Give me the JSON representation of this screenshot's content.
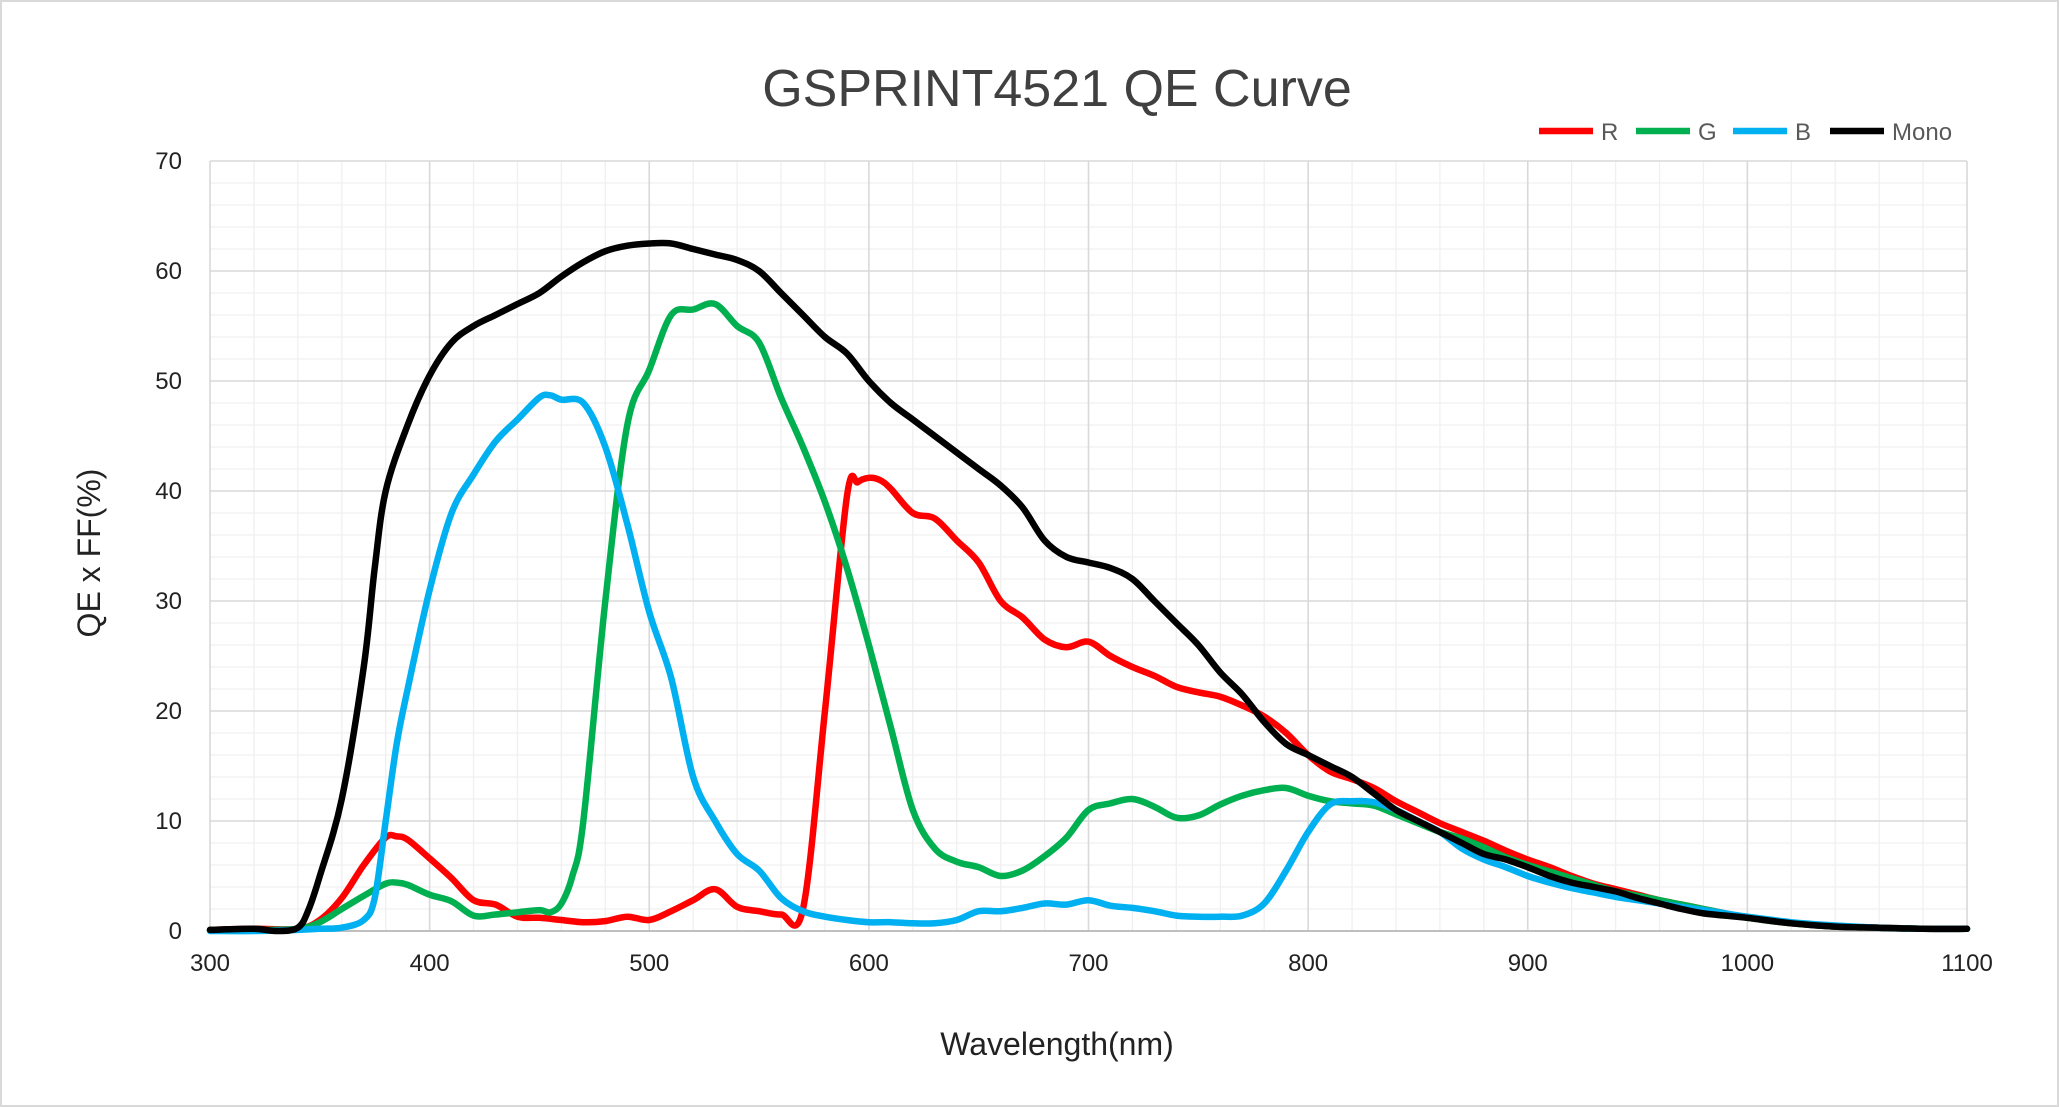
{
  "chart_data": {
    "type": "line",
    "title": "GSPRINT4521 QE  Curve",
    "xlabel": "Wavelength(nm)",
    "ylabel": "QE x FF(%)",
    "xlim": [
      300,
      1100
    ],
    "ylim": [
      0,
      70
    ],
    "x_ticks": [
      "300",
      "400",
      "500",
      "600",
      "700",
      "800",
      "900",
      "1000",
      "1100"
    ],
    "y_ticks": [
      "0",
      "10",
      "20",
      "30",
      "40",
      "50",
      "60",
      "70"
    ],
    "grid": "major and minor",
    "legend_position": "top-right",
    "series": [
      {
        "name": "R",
        "color": "#ff0000",
        "x": [
          300,
          320,
          340,
          350,
          360,
          370,
          380,
          385,
          390,
          400,
          410,
          420,
          430,
          440,
          450,
          460,
          470,
          480,
          490,
          500,
          510,
          520,
          530,
          540,
          550,
          560,
          570,
          580,
          590,
          595,
          600,
          605,
          610,
          620,
          630,
          640,
          650,
          660,
          670,
          680,
          690,
          700,
          710,
          720,
          730,
          740,
          750,
          760,
          770,
          780,
          790,
          800,
          810,
          820,
          830,
          840,
          850,
          860,
          870,
          880,
          890,
          900,
          910,
          920,
          930,
          940,
          950,
          960,
          970,
          980,
          990,
          1000,
          1020,
          1040,
          1060,
          1080,
          1100
        ],
        "values": [
          0.1,
          0.2,
          0.2,
          1.0,
          3.0,
          6.0,
          8.5,
          8.6,
          8.3,
          6.6,
          4.8,
          2.8,
          2.4,
          1.3,
          1.2,
          1.0,
          0.8,
          0.9,
          1.3,
          1.0,
          1.8,
          2.8,
          3.8,
          2.2,
          1.8,
          1.5,
          2.0,
          20.0,
          39.5,
          40.8,
          41.2,
          41.0,
          40.2,
          38.0,
          37.5,
          35.5,
          33.5,
          30.0,
          28.5,
          26.5,
          25.8,
          26.3,
          25.0,
          24.0,
          23.2,
          22.2,
          21.7,
          21.3,
          20.5,
          19.5,
          18.0,
          16.0,
          14.5,
          13.8,
          13.0,
          11.8,
          10.8,
          9.8,
          9.0,
          8.2,
          7.3,
          6.5,
          5.8,
          5.0,
          4.3,
          3.8,
          3.3,
          2.8,
          2.4,
          2.0,
          1.6,
          1.2,
          0.7,
          0.4,
          0.3,
          0.2,
          0.2
        ]
      },
      {
        "name": "G",
        "color": "#00b050",
        "x": [
          300,
          320,
          340,
          350,
          360,
          370,
          380,
          385,
          390,
          400,
          410,
          420,
          430,
          440,
          450,
          455,
          460,
          465,
          470,
          480,
          490,
          500,
          510,
          520,
          530,
          540,
          550,
          560,
          570,
          580,
          590,
          600,
          610,
          620,
          630,
          640,
          650,
          660,
          670,
          680,
          690,
          700,
          710,
          720,
          730,
          740,
          750,
          760,
          770,
          780,
          790,
          800,
          810,
          820,
          830,
          840,
          850,
          860,
          870,
          880,
          890,
          900,
          910,
          920,
          930,
          940,
          950,
          960,
          970,
          980,
          990,
          1000,
          1020,
          1040,
          1060,
          1080,
          1100
        ],
        "values": [
          0.1,
          0.1,
          0.2,
          0.8,
          2.0,
          3.2,
          4.3,
          4.4,
          4.2,
          3.3,
          2.7,
          1.4,
          1.5,
          1.7,
          1.9,
          1.7,
          2.5,
          5.0,
          10.0,
          30.0,
          46.0,
          51.0,
          56.0,
          56.5,
          57.0,
          55.0,
          53.5,
          48.5,
          44.0,
          39.0,
          33.0,
          26.0,
          18.5,
          11.0,
          7.5,
          6.3,
          5.8,
          5.0,
          5.5,
          6.8,
          8.5,
          11.0,
          11.6,
          12.0,
          11.3,
          10.3,
          10.5,
          11.5,
          12.3,
          12.8,
          13.0,
          12.3,
          11.8,
          11.6,
          11.4,
          10.6,
          9.8,
          9.0,
          8.4,
          7.6,
          6.7,
          6.0,
          5.4,
          4.8,
          4.2,
          3.6,
          3.2,
          2.8,
          2.4,
          2.0,
          1.6,
          1.2,
          0.7,
          0.4,
          0.3,
          0.2,
          0.2
        ]
      },
      {
        "name": "B",
        "color": "#00b0f0",
        "x": [
          300,
          320,
          340,
          350,
          360,
          370,
          375,
          380,
          385,
          390,
          400,
          410,
          420,
          430,
          440,
          450,
          455,
          460,
          470,
          480,
          490,
          500,
          510,
          520,
          530,
          540,
          550,
          560,
          570,
          580,
          590,
          600,
          610,
          620,
          630,
          640,
          650,
          660,
          670,
          680,
          690,
          700,
          710,
          720,
          730,
          740,
          750,
          760,
          770,
          780,
          790,
          800,
          810,
          820,
          830,
          840,
          850,
          860,
          870,
          880,
          890,
          900,
          910,
          920,
          930,
          940,
          950,
          960,
          970,
          980,
          990,
          1000,
          1020,
          1040,
          1060,
          1080,
          1100
        ],
        "values": [
          0.0,
          0.0,
          0.1,
          0.2,
          0.3,
          1.0,
          3.0,
          10.0,
          17.0,
          22.0,
          31.0,
          38.0,
          41.5,
          44.5,
          46.5,
          48.5,
          48.7,
          48.3,
          48.0,
          44.0,
          37.0,
          29.0,
          23.0,
          14.0,
          10.0,
          7.0,
          5.5,
          3.0,
          1.8,
          1.3,
          1.0,
          0.8,
          0.8,
          0.7,
          0.7,
          1.0,
          1.8,
          1.8,
          2.1,
          2.5,
          2.4,
          2.8,
          2.3,
          2.1,
          1.8,
          1.4,
          1.3,
          1.3,
          1.4,
          2.5,
          5.5,
          9.0,
          11.5,
          11.8,
          11.7,
          11.0,
          10.0,
          9.0,
          7.5,
          6.5,
          5.8,
          5.0,
          4.4,
          3.9,
          3.5,
          3.1,
          2.8,
          2.5,
          2.2,
          1.9,
          1.6,
          1.3,
          0.8,
          0.5,
          0.3,
          0.2,
          0.2
        ]
      },
      {
        "name": "Mono",
        "color": "#000000",
        "x": [
          300,
          320,
          330,
          340,
          345,
          350,
          360,
          370,
          375,
          380,
          390,
          400,
          410,
          420,
          430,
          440,
          450,
          460,
          470,
          480,
          490,
          500,
          510,
          520,
          530,
          540,
          550,
          560,
          570,
          580,
          590,
          600,
          610,
          620,
          630,
          640,
          650,
          660,
          670,
          680,
          690,
          700,
          710,
          720,
          730,
          740,
          750,
          760,
          770,
          780,
          790,
          800,
          810,
          820,
          830,
          840,
          850,
          860,
          870,
          880,
          890,
          900,
          910,
          920,
          930,
          940,
          950,
          960,
          970,
          980,
          990,
          1000,
          1020,
          1040,
          1060,
          1080,
          1100
        ],
        "values": [
          0.1,
          0.2,
          0.0,
          0.3,
          2.0,
          5.0,
          12.0,
          24.0,
          33.0,
          40.0,
          46.0,
          50.5,
          53.5,
          55.0,
          56.0,
          57.0,
          58.0,
          59.5,
          60.8,
          61.8,
          62.3,
          62.5,
          62.5,
          62.0,
          61.5,
          61.0,
          60.0,
          58.0,
          56.0,
          54.0,
          52.5,
          50.0,
          48.0,
          46.5,
          45.0,
          43.5,
          42.0,
          40.5,
          38.5,
          35.5,
          34.0,
          33.5,
          33.0,
          32.0,
          30.0,
          28.0,
          26.0,
          23.5,
          21.5,
          19.0,
          17.0,
          16.0,
          15.0,
          14.0,
          12.5,
          11.0,
          10.0,
          9.0,
          8.0,
          7.0,
          6.5,
          5.8,
          5.0,
          4.4,
          4.0,
          3.6,
          3.0,
          2.5,
          2.0,
          1.6,
          1.4,
          1.2,
          0.7,
          0.4,
          0.3,
          0.2,
          0.2
        ]
      }
    ]
  }
}
